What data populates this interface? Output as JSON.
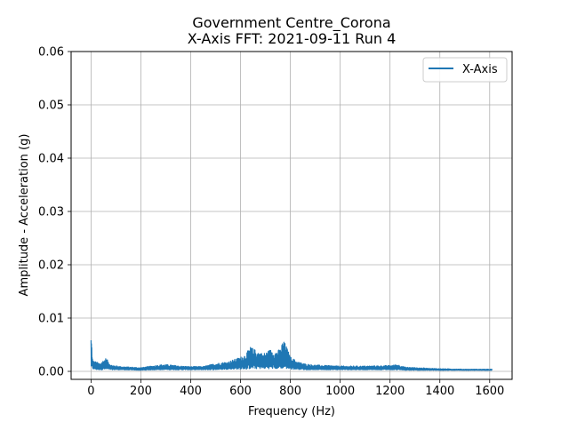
{
  "chart_data": {
    "type": "line",
    "title_line1": "Government Centre_Corona",
    "title_line2": "X-Axis FFT: 2021-09-11 Run 4",
    "xlabel": "Frequency (Hz)",
    "ylabel": "Amplitude - Acceleration (g)",
    "xlim": [
      -80,
      1690
    ],
    "ylim": [
      -0.0015,
      0.06
    ],
    "x_ticks": [
      0,
      200,
      400,
      600,
      800,
      1000,
      1200,
      1400,
      1600
    ],
    "x_tick_labels": [
      "0",
      "200",
      "400",
      "600",
      "800",
      "1000",
      "1200",
      "1400",
      "1600"
    ],
    "y_ticks": [
      0.0,
      0.01,
      0.02,
      0.03,
      0.04,
      0.05,
      0.06
    ],
    "y_tick_labels": [
      "0.00",
      "0.01",
      "0.02",
      "0.03",
      "0.04",
      "0.05",
      "0.06"
    ],
    "grid": true,
    "legend_position": "top-right",
    "series": [
      {
        "name": "X-Axis",
        "color": "#1f77b4",
        "envelope": {
          "x": [
            0,
            2,
            6,
            12,
            20,
            35,
            50,
            60,
            80,
            120,
            200,
            260,
            290,
            320,
            360,
            400,
            450,
            500,
            550,
            600,
            620,
            640,
            660,
            690,
            720,
            740,
            760,
            770,
            780,
            800,
            830,
            860,
            900,
            1000,
            1100,
            1200,
            1230,
            1260,
            1300,
            1400,
            1500,
            1610
          ],
          "max": [
            0.0068,
            0.0058,
            0.0022,
            0.0019,
            0.0018,
            0.0015,
            0.0021,
            0.0025,
            0.0012,
            0.0009,
            0.0007,
            0.0011,
            0.0013,
            0.0012,
            0.001,
            0.0009,
            0.0009,
            0.0015,
            0.0018,
            0.0027,
            0.0032,
            0.0046,
            0.004,
            0.0033,
            0.0041,
            0.0037,
            0.0042,
            0.0058,
            0.0052,
            0.0027,
            0.0018,
            0.0014,
            0.0012,
            0.001,
            0.001,
            0.0011,
            0.0013,
            0.0008,
            0.0007,
            0.0005,
            0.0004,
            0.0004
          ],
          "min": [
            0.0006,
            0.0005,
            0.0004,
            0.0004,
            0.0003,
            0.0003,
            0.0003,
            0.0003,
            0.0003,
            0.0003,
            0.0002,
            0.0003,
            0.0003,
            0.0003,
            0.0003,
            0.0003,
            0.0003,
            0.0003,
            0.0004,
            0.0004,
            0.0004,
            0.0005,
            0.0005,
            0.0005,
            0.0005,
            0.0005,
            0.0005,
            0.0006,
            0.0005,
            0.0004,
            0.0004,
            0.0003,
            0.0003,
            0.0003,
            0.0003,
            0.0003,
            0.0003,
            0.0002,
            0.0002,
            0.0002,
            0.0002,
            0.0002
          ]
        }
      }
    ]
  }
}
